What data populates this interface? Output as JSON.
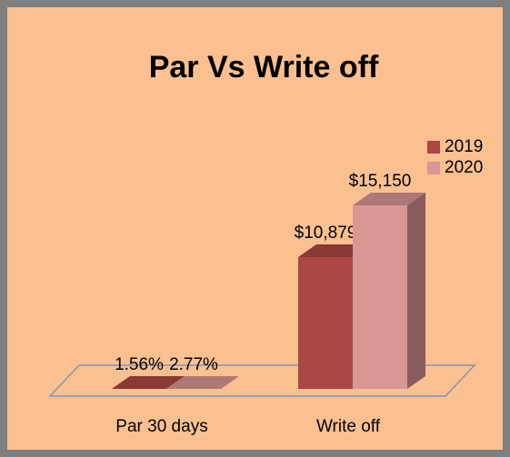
{
  "chart_data": {
    "type": "bar3d",
    "title": "Par Vs Write off",
    "categories": [
      "Par 30 days",
      "Write off"
    ],
    "series": [
      {
        "name": "2019",
        "color": "#ab4744",
        "values": [
          1.56,
          10879
        ],
        "value_labels": [
          "1.56%",
          "$10,879"
        ]
      },
      {
        "name": "2020",
        "color": "#d99694",
        "values": [
          2.77,
          15150
        ],
        "value_labels": [
          "2.77%",
          "$15,150"
        ]
      }
    ],
    "legend": "right"
  }
}
